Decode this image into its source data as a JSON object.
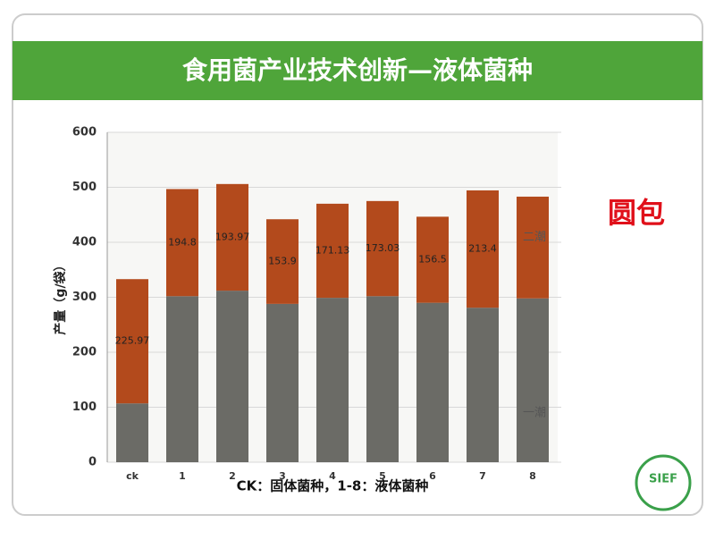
{
  "header": {
    "title": "食用菌产业技术创新—液体菌种"
  },
  "side_label": "圆包",
  "logo": "SIEF",
  "chart_data": {
    "type": "stacked-bar",
    "y_label": "产量（g/袋）",
    "x_label": "CK：固体菌种，1-8：液体菌种",
    "categories": [
      "ck",
      "1",
      "2",
      "3",
      "4",
      "5",
      "6",
      "7",
      "8"
    ],
    "series": [
      {
        "name": "一潮",
        "color": "#6b6b66",
        "values": [
          107,
          302,
          312,
          288,
          299,
          302,
          290,
          281,
          298
        ]
      },
      {
        "name": "二潮",
        "color": "#b34a1c",
        "values": [
          225.97,
          194.8,
          193.97,
          153.9,
          171.13,
          173.03,
          156.5,
          213.4,
          185
        ],
        "value_labels": [
          "225.97",
          "194.8",
          "193.97",
          "153.9",
          "171.13",
          "173.03",
          "156.5",
          "213.4",
          null
        ]
      }
    ],
    "ylim": [
      0,
      600
    ],
    "yticks": [
      0,
      100,
      200,
      300,
      400,
      500,
      600
    ],
    "grid": true
  }
}
